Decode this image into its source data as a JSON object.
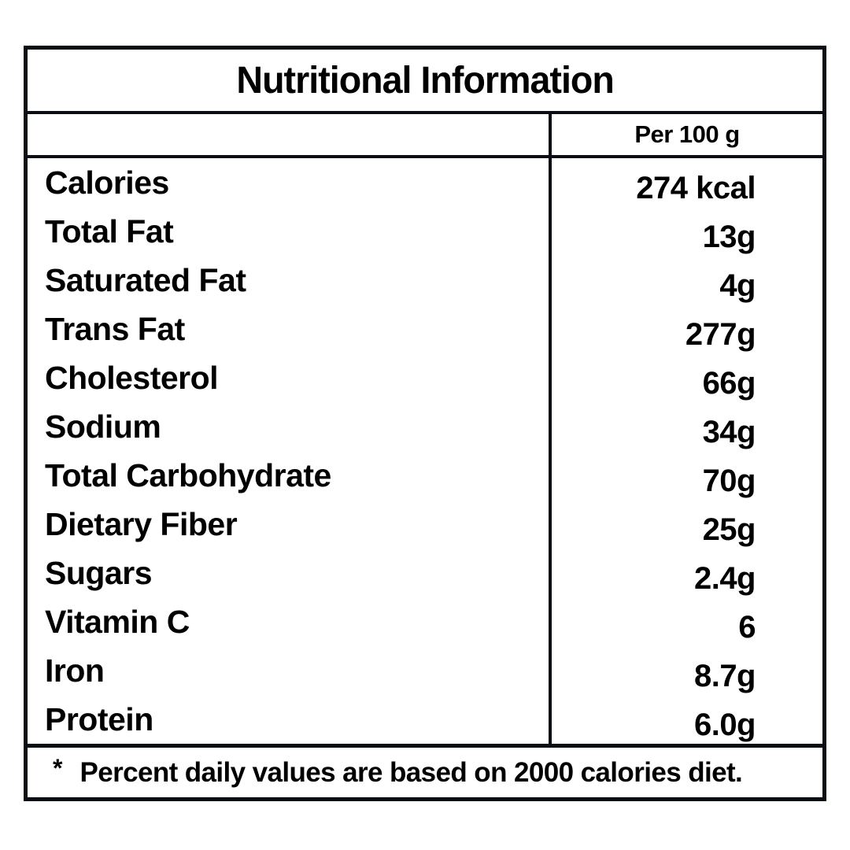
{
  "title": "Nutritional Information",
  "column_header": "Per 100 g",
  "rows": [
    {
      "label": "Calories",
      "value": "274 kcal"
    },
    {
      "label": "Total Fat",
      "value": "13g"
    },
    {
      "label": "Saturated Fat",
      "value": "4g"
    },
    {
      "label": "Trans Fat",
      "value": "277g"
    },
    {
      "label": "Cholesterol",
      "value": "66g"
    },
    {
      "label": "Sodium",
      "value": "34g"
    },
    {
      "label": "Total Carbohydrate",
      "value": "70g"
    },
    {
      "label": "Dietary Fiber",
      "value": "25g"
    },
    {
      "label": "Sugars",
      "value": "2.4g"
    },
    {
      "label": "Vitamin C",
      "value": "6"
    },
    {
      "label": "Iron",
      "value": "8.7g"
    },
    {
      "label": "Protein",
      "value": "6.0g"
    }
  ],
  "footnote": {
    "marker": "*",
    "text": "Percent daily values are based on 2000 calories diet."
  },
  "colors": {
    "border": "#0a0e14",
    "background": "#ffffff",
    "text": "#000000"
  }
}
